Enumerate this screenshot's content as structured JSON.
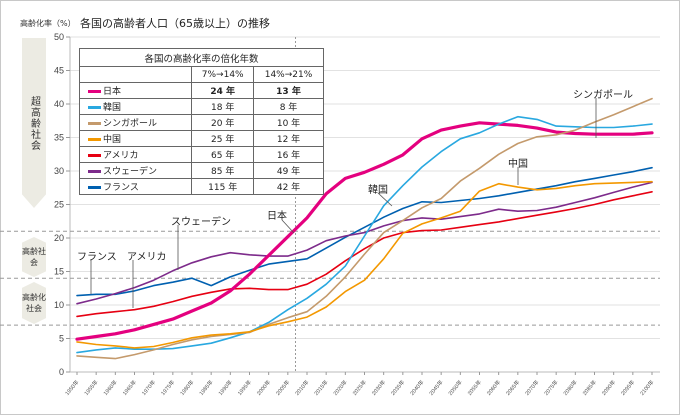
{
  "header": {
    "y_unit_label": "高齢化率（%）",
    "title": "各国の高齢者人口（65歳以上）の推移"
  },
  "bands": {
    "super_aged": "超高齢社会",
    "aged": "高齢社会",
    "aging": "高齢化社会"
  },
  "table": {
    "caption": "各国の高齢化率の倍化年数",
    "col1": "7%→14%",
    "col2": "14%→21%",
    "rows": [
      {
        "name": "日本",
        "color": "#e4007f",
        "a": "24 年",
        "b": "13 年",
        "bold": true
      },
      {
        "name": "韓国",
        "color": "#29a8e0",
        "a": "18 年",
        "b": "8 年",
        "bold": false
      },
      {
        "name": "シンガポール",
        "color": "#c49a6c",
        "a": "20 年",
        "b": "10 年",
        "bold": false
      },
      {
        "name": "中国",
        "color": "#f39800",
        "a": "25 年",
        "b": "12 年",
        "bold": false
      },
      {
        "name": "アメリカ",
        "color": "#e60012",
        "a": "65 年",
        "b": "16 年",
        "bold": false
      },
      {
        "name": "スウェーデン",
        "color": "#7d2b8b",
        "a": "85 年",
        "b": "49 年",
        "bold": false
      },
      {
        "name": "フランス",
        "color": "#0060b0",
        "a": "115 年",
        "b": "42 年",
        "bold": false
      }
    ]
  },
  "annotations": {
    "japan": "日本",
    "korea": "韓国",
    "singapore": "シンガポール",
    "china": "中国",
    "sweden": "スウェーデン",
    "france": "フランス",
    "usa": "アメリカ"
  },
  "chart_data": {
    "type": "line",
    "title": "各国の高齢者人口（65歳以上）の推移",
    "xlabel": "",
    "ylabel": "高齢化率（%）",
    "ylim": [
      0,
      50
    ],
    "yticks": [
      0,
      5,
      10,
      15,
      20,
      25,
      30,
      35,
      40,
      45,
      50
    ],
    "grid": true,
    "threshold_lines": [
      7,
      14,
      21
    ],
    "present_marker_year": 2007,
    "x": [
      1950,
      1955,
      1960,
      1965,
      1970,
      1975,
      1980,
      1985,
      1990,
      1995,
      2000,
      2005,
      2010,
      2015,
      2020,
      2025,
      2030,
      2035,
      2040,
      2045,
      2050,
      2055,
      2060,
      2065,
      2070,
      2075,
      2080,
      2085,
      2090,
      2095,
      2100
    ],
    "x_tick_labels": [
      "1950年",
      "1955年",
      "1960年",
      "1965年",
      "1970年",
      "1975年",
      "1980年",
      "1985年",
      "1990年",
      "1995年",
      "2000年",
      "2005年",
      "2010年",
      "2015年",
      "2020年",
      "2025年",
      "2030年",
      "2035年",
      "2040年",
      "2045年",
      "2050年",
      "2055年",
      "2060年",
      "2065年",
      "2070年",
      "2075年",
      "2080年",
      "2085年",
      "2090年",
      "2095年",
      "2100年"
    ],
    "series": [
      {
        "name": "フランス",
        "color": "#0060b0",
        "values": [
          11.4,
          11.6,
          11.6,
          12.1,
          12.9,
          13.4,
          14.0,
          12.9,
          14.2,
          15.2,
          16.1,
          16.5,
          16.9,
          18.5,
          20.1,
          21.6,
          23.1,
          24.4,
          25.4,
          25.3,
          25.6,
          25.9,
          26.3,
          26.8,
          27.3,
          27.8,
          28.4,
          28.9,
          29.4,
          29.9,
          30.5
        ]
      },
      {
        "name": "スウェーデン",
        "color": "#7d2b8b",
        "values": [
          10.2,
          10.9,
          11.7,
          12.6,
          13.7,
          15.1,
          16.3,
          17.2,
          17.8,
          17.5,
          17.3,
          17.3,
          18.2,
          19.6,
          20.3,
          20.8,
          21.8,
          22.6,
          23.0,
          22.8,
          23.2,
          23.6,
          24.3,
          24.0,
          24.1,
          24.6,
          25.3,
          26.0,
          26.8,
          27.6,
          28.3
        ]
      },
      {
        "name": "アメリカ",
        "color": "#e60012",
        "values": [
          8.3,
          8.7,
          9.0,
          9.3,
          9.8,
          10.5,
          11.3,
          11.9,
          12.4,
          12.5,
          12.3,
          12.3,
          13.1,
          14.6,
          16.6,
          18.4,
          20.0,
          20.8,
          21.1,
          21.2,
          21.6,
          22.0,
          22.4,
          22.9,
          23.4,
          23.9,
          24.4,
          25.0,
          25.7,
          26.3,
          26.9
        ]
      },
      {
        "name": "日本",
        "color": "#e4007f",
        "values": [
          4.9,
          5.3,
          5.7,
          6.3,
          7.1,
          7.9,
          9.1,
          10.3,
          12.1,
          14.6,
          17.4,
          20.2,
          23.0,
          26.6,
          28.9,
          29.8,
          31.0,
          32.4,
          34.8,
          36.1,
          36.7,
          37.2,
          37.0,
          36.8,
          36.4,
          35.8,
          35.6,
          35.5,
          35.5,
          35.5,
          35.7
        ]
      },
      {
        "name": "韓国",
        "color": "#29a8e0",
        "values": [
          2.9,
          3.3,
          3.6,
          3.4,
          3.4,
          3.5,
          3.9,
          4.3,
          5.1,
          6.0,
          7.4,
          9.3,
          11.0,
          13.1,
          15.8,
          20.3,
          24.8,
          27.8,
          30.6,
          32.9,
          34.8,
          35.7,
          37.0,
          38.1,
          37.7,
          36.7,
          36.6,
          36.5,
          36.5,
          36.7,
          37.0
        ]
      },
      {
        "name": "シンガポール",
        "color": "#c49a6c",
        "values": [
          2.4,
          2.2,
          2.0,
          2.6,
          3.3,
          4.1,
          4.8,
          5.3,
          5.6,
          5.9,
          7.1,
          8.1,
          9.0,
          11.3,
          14.2,
          17.6,
          20.8,
          22.6,
          24.5,
          25.9,
          28.5,
          30.4,
          32.5,
          34.1,
          35.1,
          35.4,
          36.1,
          37.3,
          38.4,
          39.6,
          40.8
        ]
      },
      {
        "name": "中国",
        "color": "#f39800",
        "values": [
          4.5,
          4.1,
          3.9,
          3.6,
          3.8,
          4.4,
          5.1,
          5.5,
          5.7,
          6.0,
          6.9,
          7.5,
          8.2,
          9.7,
          12.0,
          13.7,
          16.9,
          20.7,
          22.1,
          23.0,
          24.0,
          27.0,
          28.1,
          27.6,
          27.2,
          27.4,
          27.8,
          28.1,
          28.2,
          28.3,
          28.4
        ]
      }
    ]
  }
}
